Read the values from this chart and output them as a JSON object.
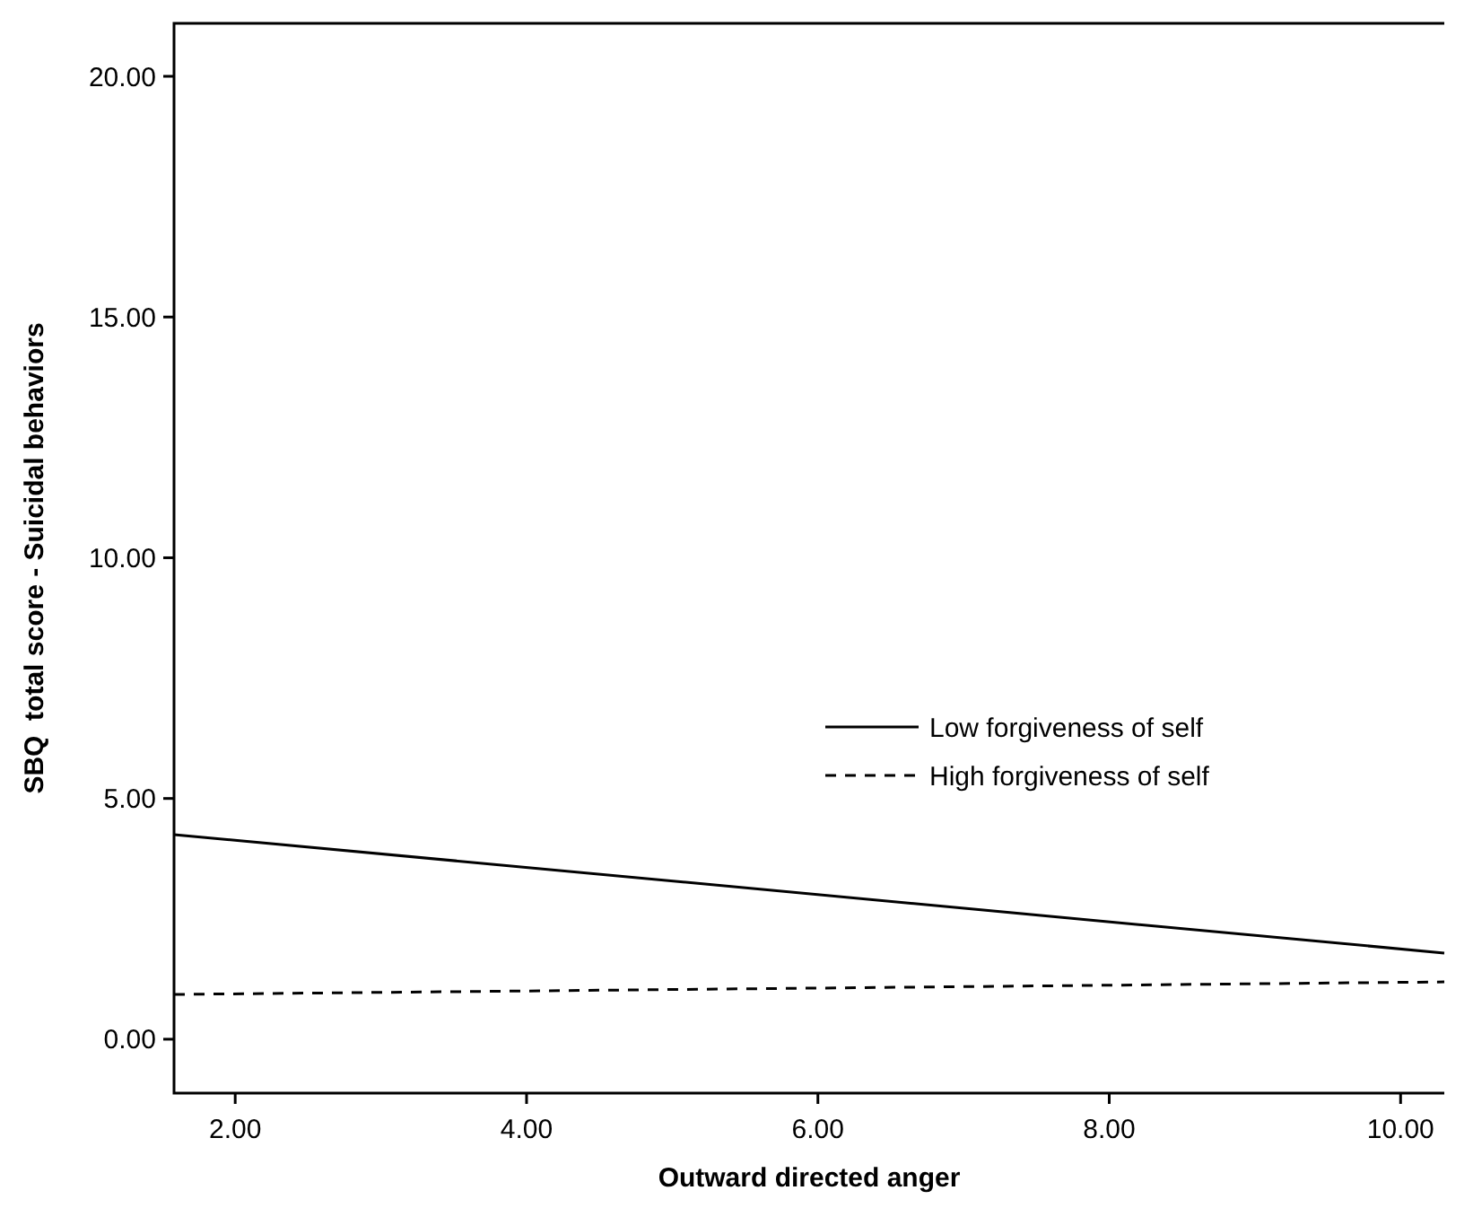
{
  "chart_data": {
    "type": "line",
    "xlabel": "Outward directed anger",
    "ylabel": "SBQ  total score - Suicidal behaviors",
    "x": [
      1.58,
      10.3
    ],
    "series": [
      {
        "name": "Low forgiveness of self",
        "color": "#000000",
        "values": [
          4.25,
          1.79
        ],
        "line_style": "solid"
      },
      {
        "name": "High forgiveness of self",
        "color": "#000000",
        "values": [
          0.93,
          1.19
        ],
        "line_style": "dashed"
      }
    ],
    "xlim": [
      1.58,
      10.3
    ],
    "xticks": [
      {
        "value": 2,
        "label": "2.00"
      },
      {
        "value": 4,
        "label": "4.00"
      },
      {
        "value": 6,
        "label": "6.00"
      },
      {
        "value": 8,
        "label": "8.00"
      },
      {
        "value": 10,
        "label": "10.00"
      }
    ],
    "ylim": [
      -1.12,
      21.1
    ],
    "yticks": [
      {
        "value": 0,
        "label": "0.00"
      },
      {
        "value": 5,
        "label": "5.00"
      },
      {
        "value": 10,
        "label": "10.00"
      },
      {
        "value": 15,
        "label": "15.00"
      },
      {
        "value": 20,
        "label": "20.00"
      }
    ],
    "grid": false,
    "legend": "right",
    "marker": "none"
  }
}
